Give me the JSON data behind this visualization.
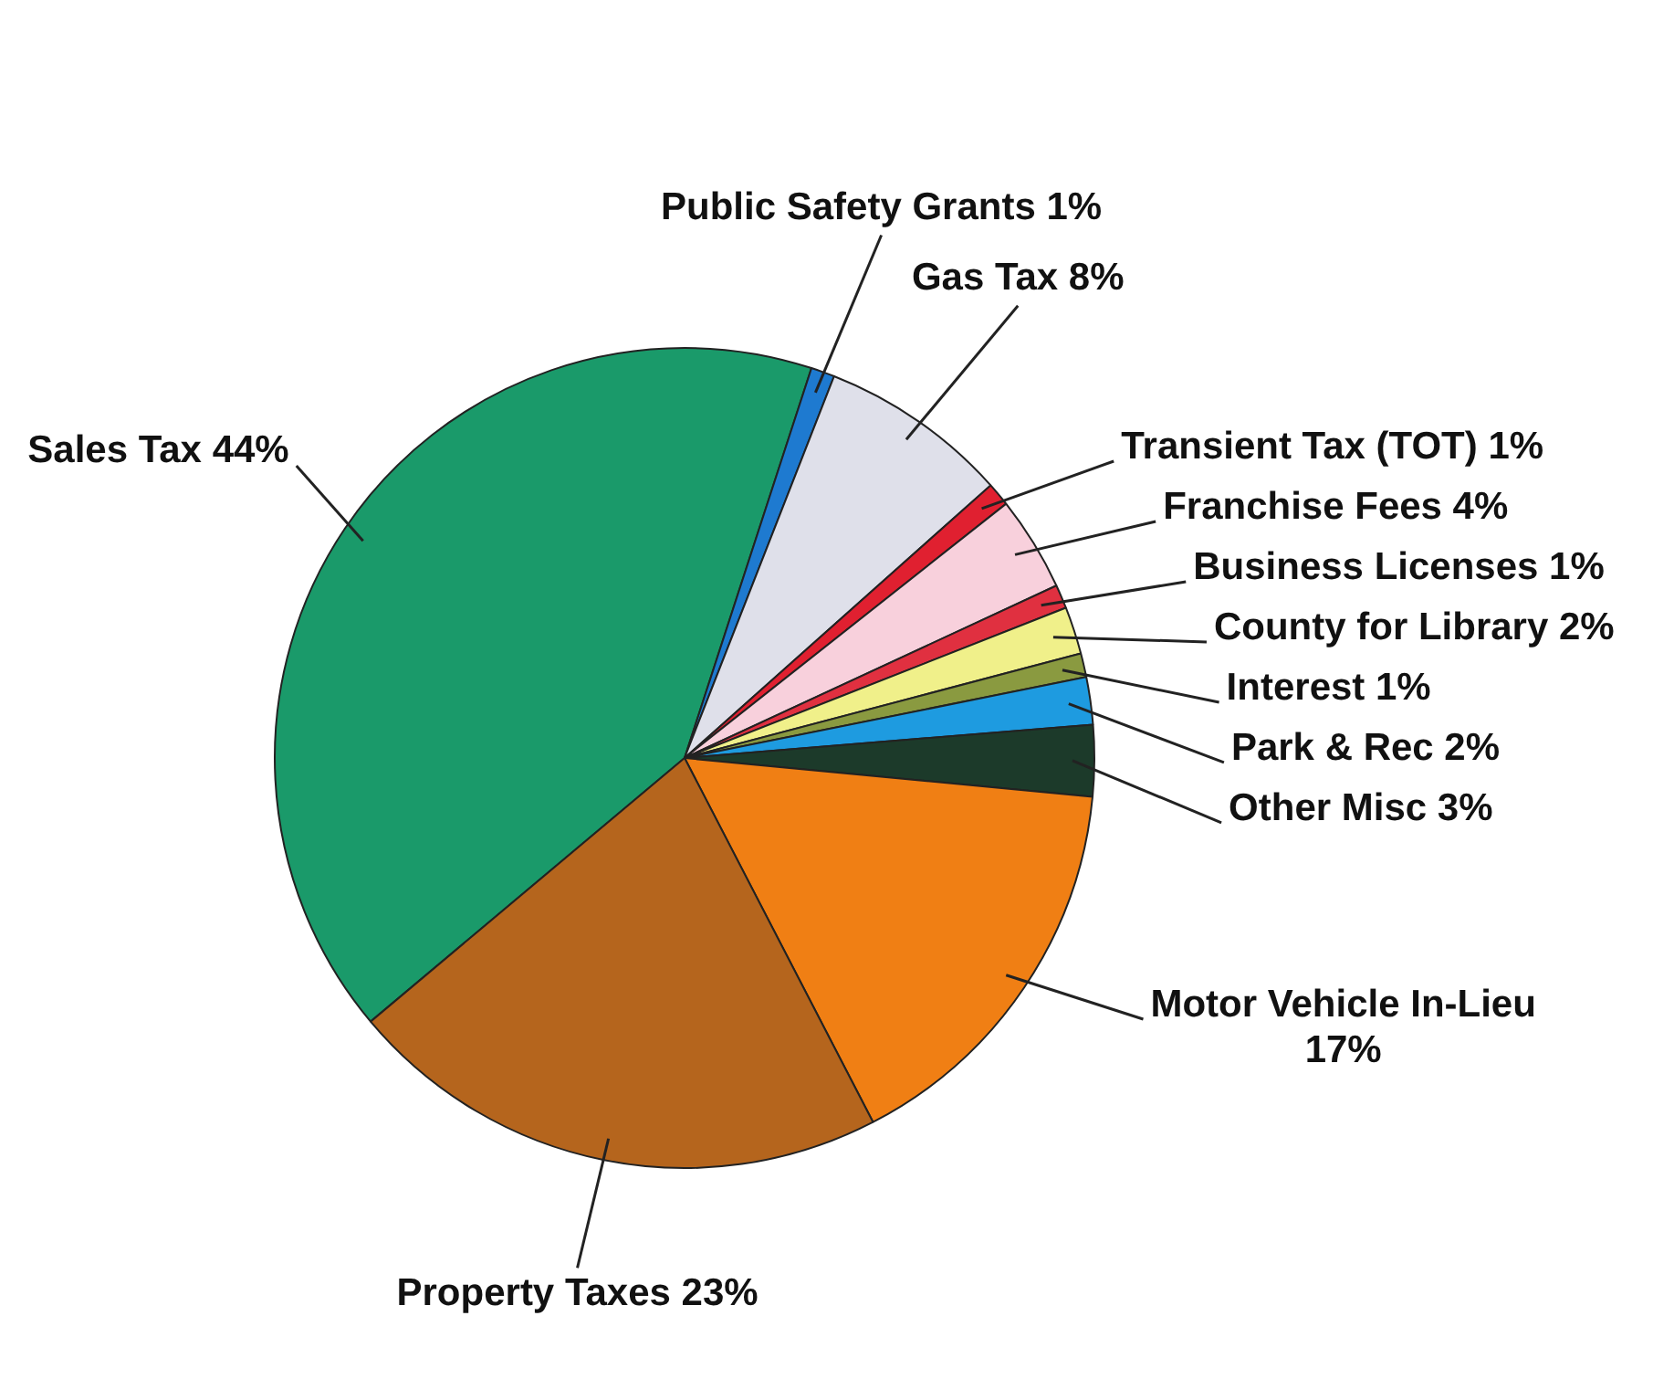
{
  "chart_data": {
    "type": "pie",
    "categories": [
      "Sales Tax",
      "Public Safety Grants",
      "Gas Tax",
      "Transient Tax (TOT)",
      "Franchise Fees",
      "Business Licenses",
      "County for Library",
      "Interest",
      "Park & Rec",
      "Other Misc",
      "Motor Vehicle In-Lieu",
      "Property Taxes"
    ],
    "values": [
      44,
      1,
      8,
      1,
      4,
      1,
      2,
      1,
      2,
      3,
      17,
      23
    ],
    "value_labels": [
      "44%",
      "1%",
      "8%",
      "1%",
      "4%",
      "1%",
      "2%",
      "1%",
      "2%",
      "3%",
      "17%",
      "23%"
    ],
    "colors": [
      "#1a9a6a",
      "#1e7ad0",
      "#dfe0ea",
      "#e02030",
      "#f8d0dc",
      "#e03040",
      "#f0f08a",
      "#8a9a40",
      "#1e9be0",
      "#1c3a2a",
      "#f07f14",
      "#b5651d"
    ]
  }
}
